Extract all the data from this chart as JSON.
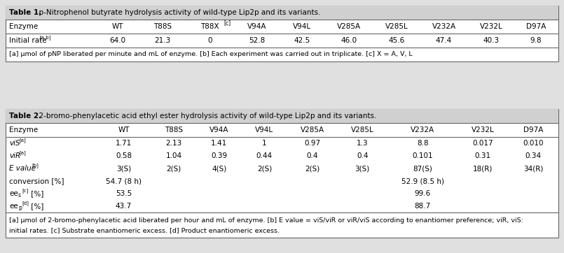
{
  "table1": {
    "title_bold": "Table 1.",
    "title_rest": "  p-Nitrophenol butyrate hydrolysis activity of wild-type Lip2p and its variants.",
    "col_headers": [
      "Enzyme",
      "WT",
      "T88S",
      "T88X[c]",
      "V94A",
      "V94L",
      "V285A",
      "V285L",
      "V232A",
      "V232L",
      "D97A"
    ],
    "data_rows": [
      [
        "Initial rate[a,b]",
        "64.0",
        "21.3",
        "0",
        "52.8",
        "42.5",
        "46.0",
        "45.6",
        "47.4",
        "40.3",
        "9.8"
      ]
    ],
    "footnote": "[a] μmol of pNP liberated per minute and mL of enzyme. [b] Each experiment was carried out in triplicate. [c] X = A, V, L",
    "col_widths_raw": [
      90,
      45,
      45,
      50,
      45,
      45,
      50,
      45,
      50,
      45,
      45
    ]
  },
  "table2": {
    "title_bold": "Table 2.",
    "title_rest": "  2-bromo-phenylacetic acid ethyl ester hydrolysis activity of wild-type Lip2p and its variants.",
    "col_headers": [
      "Enzyme",
      "WT",
      "T88S",
      "V94A",
      "V94L",
      "V285A",
      "V285L",
      "V232A",
      "V232L",
      "D97A"
    ],
    "data_rows": [
      [
        "viS[a]",
        "1.71",
        "2.13",
        "1.41",
        "1",
        "0.97",
        "1.3",
        "8.8",
        "0.017",
        "0.010"
      ],
      [
        "viR[a]",
        "0.58",
        "1.04",
        "0.39",
        "0.44",
        "0.4",
        "0.4",
        "0.101",
        "0.31",
        "0.34"
      ],
      [
        "E value[b]",
        "3(S)",
        "2(S)",
        "4(S)",
        "2(S)",
        "2(S)",
        "3(S)",
        "87(S)",
        "18(R)",
        "34(R)"
      ],
      [
        "conversion [%]",
        "54.7 (8 h)",
        "",
        "",
        "",
        "",
        "",
        "52.9 (8.5 h)",
        "",
        ""
      ],
      [
        "ees[c] [%]",
        "53.5",
        "",
        "",
        "",
        "",
        "",
        "99.6",
        "",
        ""
      ],
      [
        "eep[d] [%]",
        "43.7",
        "",
        "",
        "",
        "",
        "",
        "88.7",
        "",
        ""
      ]
    ],
    "footnote_line1": "[a] μmol of 2-bromo-phenylacetic acid liberated per hour and mL of enzyme. [b] E value = viS/viR or viR/viS according to enantiomer preference; viR, viS:",
    "footnote_line2": "initial rates. [c] Substrate enantiomeric excess. [d] Product enantiomeric excess.",
    "col_widths_raw": [
      90,
      55,
      45,
      45,
      45,
      50,
      50,
      70,
      50,
      50
    ]
  },
  "header_bg": "#d0d0d0",
  "border_color": "#666666",
  "bg_white": "#ffffff",
  "bg_page": "#e0e0e0",
  "fontsize": 7.5,
  "footnote_fontsize": 6.8
}
